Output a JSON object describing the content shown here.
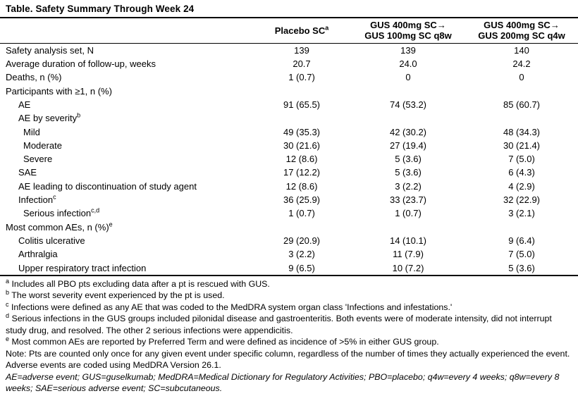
{
  "title": "Table. Safety Summary Through Week 24",
  "columns": [
    {
      "label": "Placebo SC",
      "sup": "a"
    },
    {
      "line1": "GUS 400mg SC→",
      "line2": "GUS 100mg SC q8w"
    },
    {
      "line1": "GUS 400mg SC→",
      "line2": "GUS 200mg SC q4w"
    }
  ],
  "rows": [
    {
      "label": "Safety analysis set, N",
      "sup": "",
      "indent": 0,
      "values": [
        "139",
        "139",
        "140"
      ]
    },
    {
      "label": "Average duration of follow-up, weeks",
      "sup": "",
      "indent": 0,
      "values": [
        "20.7",
        "24.0",
        "24.2"
      ]
    },
    {
      "label": "Deaths, n (%)",
      "sup": "",
      "indent": 0,
      "values": [
        "1 (0.7)",
        "0",
        "0"
      ]
    },
    {
      "label": "Participants with ≥1, n (%)",
      "sup": "",
      "indent": 0,
      "values": [
        "",
        "",
        ""
      ]
    },
    {
      "label": "AE",
      "sup": "",
      "indent": 1,
      "values": [
        "91 (65.5)",
        "74 (53.2)",
        "85 (60.7)"
      ]
    },
    {
      "label": "AE by severity",
      "sup": "b",
      "indent": 1,
      "values": [
        "",
        "",
        ""
      ]
    },
    {
      "label": "Mild",
      "sup": "",
      "indent": 2,
      "values": [
        "49 (35.3)",
        "42 (30.2)",
        "48 (34.3)"
      ]
    },
    {
      "label": "Moderate",
      "sup": "",
      "indent": 2,
      "values": [
        "30 (21.6)",
        "27 (19.4)",
        "30 (21.4)"
      ]
    },
    {
      "label": "Severe",
      "sup": "",
      "indent": 2,
      "values": [
        "12 (8.6)",
        "5 (3.6)",
        "7 (5.0)"
      ]
    },
    {
      "label": "SAE",
      "sup": "",
      "indent": 1,
      "values": [
        "17 (12.2)",
        "5 (3.6)",
        "6 (4.3)"
      ]
    },
    {
      "label": "AE leading to discontinuation of study agent",
      "sup": "",
      "indent": 1,
      "values": [
        "12 (8.6)",
        "3 (2.2)",
        "4 (2.9)"
      ]
    },
    {
      "label": "Infection",
      "sup": "c",
      "indent": 1,
      "values": [
        "36 (25.9)",
        "33 (23.7)",
        "32 (22.9)"
      ]
    },
    {
      "label": "Serious infection",
      "sup": "c,d",
      "indent": 2,
      "values": [
        "1 (0.7)",
        "1 (0.7)",
        "3 (2.1)"
      ]
    },
    {
      "label": "Most common AEs, n (%)",
      "sup": "e",
      "indent": 0,
      "values": [
        "",
        "",
        ""
      ]
    },
    {
      "label": "Colitis ulcerative",
      "sup": "",
      "indent": 1,
      "values": [
        "29 (20.9)",
        "14 (10.1)",
        "9 (6.4)"
      ]
    },
    {
      "label": "Arthralgia",
      "sup": "",
      "indent": 1,
      "values": [
        "3 (2.2)",
        "11 (7.9)",
        "7 (5.0)"
      ]
    },
    {
      "label": "Upper respiratory tract infection",
      "sup": "",
      "indent": 1,
      "values": [
        "9 (6.5)",
        "10 (7.2)",
        "5 (3.6)"
      ]
    }
  ],
  "footnotes": [
    {
      "sup": "a",
      "text": "Includes all PBO pts excluding data after a pt is rescued with GUS.",
      "italic": false
    },
    {
      "sup": "b",
      "text": "The worst severity event experienced by the pt is used.",
      "italic": false
    },
    {
      "sup": "c",
      "text": "Infections were defined as any AE that was coded to the MedDRA system organ class 'Infections and infestations.'",
      "italic": false
    },
    {
      "sup": "d",
      "text": "Serious infections in the GUS groups included pilonidal disease and gastroenteritis. Both events were of moderate intensity, did not interrupt study drug, and resolved. The other 2 serious infections were appendicitis.",
      "italic": false
    },
    {
      "sup": "e",
      "text": "Most common AEs are reported by Preferred Term and were defined as incidence of >5% in either GUS group.",
      "italic": false
    },
    {
      "sup": "",
      "text": "Note: Pts are counted only once for any given event under specific column, regardless of the number of times they actually experienced the event. Adverse events are coded using MedDRA Version 26.1.",
      "italic": false
    },
    {
      "sup": "",
      "text": "AE=adverse event; GUS=guselkumab; MedDRA=Medical Dictionary for Regulatory Activities; PBO=placebo; q4w=every 4 weeks; q8w=every 8 weeks; SAE=serious adverse event; SC=subcutaneous.",
      "italic": true
    }
  ]
}
